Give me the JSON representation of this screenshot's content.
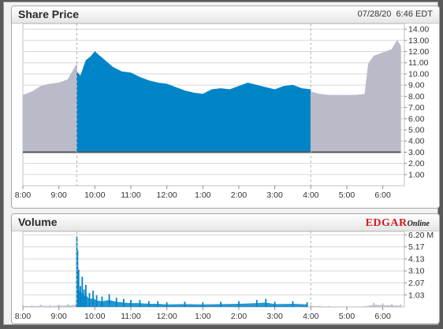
{
  "price_panel": {
    "title": "Share Price",
    "date": "07/28/20",
    "time": "6:46 EDT"
  },
  "volume_panel": {
    "title": "Volume"
  },
  "brand": {
    "main": "EDGAR",
    "sub": "Online"
  },
  "colors": {
    "session": "#0084c8",
    "extended": "#b9bcc8",
    "baseline": "#555555",
    "grid": "#d8d8d8",
    "divider": "#c0c0c0"
  },
  "chart_data": [
    {
      "type": "area",
      "title": "Share Price",
      "x_ticks": [
        "8:00",
        "9:00",
        "10:00",
        "11:00",
        "12:00",
        "1:00",
        "2:00",
        "3:00",
        "4:00",
        "5:00",
        "6:00"
      ],
      "y_ticks": [
        "1.00",
        "2.00",
        "3.00",
        "4.00",
        "5.00",
        "6.00",
        "7.00",
        "8.00",
        "9.00",
        "10.00",
        "11.00",
        "12.00",
        "13.00",
        "14.00"
      ],
      "ylim": [
        0,
        14.5
      ],
      "baseline": 3.0,
      "session_hours": [
        9.5,
        16.0
      ],
      "series": [
        {
          "segment": "pre-market",
          "x": [
            8.0,
            8.25,
            8.5,
            8.75,
            9.0,
            9.25,
            9.5
          ],
          "y": [
            8.1,
            8.4,
            8.9,
            9.1,
            9.2,
            9.5,
            10.9
          ]
        },
        {
          "segment": "regular",
          "x": [
            9.5,
            9.6,
            9.75,
            9.9,
            10.0,
            10.1,
            10.25,
            10.5,
            10.75,
            11.0,
            11.25,
            11.5,
            11.75,
            12.0,
            12.25,
            12.5,
            12.75,
            13.0,
            13.25,
            13.5,
            13.75,
            14.0,
            14.25,
            14.5,
            14.75,
            15.0,
            15.25,
            15.5,
            15.75,
            16.0
          ],
          "y": [
            10.2,
            9.8,
            11.2,
            11.6,
            12.0,
            11.7,
            11.3,
            10.6,
            10.2,
            10.1,
            9.7,
            9.4,
            9.2,
            9.1,
            8.8,
            8.5,
            8.3,
            8.2,
            8.6,
            8.7,
            8.6,
            8.9,
            9.2,
            9.0,
            8.8,
            8.6,
            8.9,
            9.0,
            8.7,
            8.6
          ]
        },
        {
          "segment": "after-hours",
          "x": [
            16.0,
            16.25,
            16.5,
            16.75,
            17.0,
            17.25,
            17.5,
            17.6,
            17.75,
            18.0,
            18.25,
            18.4,
            18.5
          ],
          "y": [
            8.4,
            8.2,
            8.1,
            8.1,
            8.1,
            8.1,
            8.2,
            10.9,
            11.6,
            11.9,
            12.2,
            13.0,
            12.5
          ]
        }
      ]
    },
    {
      "type": "bar",
      "title": "Volume",
      "x_ticks": [
        "8:00",
        "9:00",
        "10:00",
        "11:00",
        "12:00",
        "1:00",
        "2:00",
        "3:00",
        "4:00",
        "5:00",
        "6:00"
      ],
      "y_ticks": [
        "1.03",
        "2.07",
        "3.10",
        "4.13",
        "5.17",
        "6.20 M"
      ],
      "ylim": [
        0,
        6.5
      ],
      "unit": "M",
      "series": [
        {
          "segment": "pre-market",
          "x": [
            8.0,
            8.25,
            8.5,
            8.75,
            9.0,
            9.25,
            9.49
          ],
          "y": [
            0.15,
            0.12,
            0.18,
            0.14,
            0.2,
            0.25,
            0.35
          ]
        },
        {
          "segment": "regular",
          "x": [
            9.5,
            9.52,
            9.55,
            9.6,
            9.65,
            9.7,
            9.75,
            9.85,
            9.95,
            10.05,
            10.2,
            10.4,
            10.6,
            10.8,
            11.0,
            11.25,
            11.5,
            11.75,
            12.0,
            12.5,
            13.0,
            13.5,
            14.0,
            14.5,
            14.75,
            15.0,
            15.5,
            15.9
          ],
          "y": [
            6.1,
            4.9,
            3.2,
            1.8,
            2.6,
            1.5,
            1.9,
            1.2,
            1.4,
            1.0,
            0.9,
            1.1,
            0.8,
            0.7,
            0.6,
            0.6,
            0.5,
            0.5,
            0.4,
            0.45,
            0.4,
            0.45,
            0.5,
            0.6,
            0.7,
            0.45,
            0.5,
            0.4
          ]
        },
        {
          "segment": "after-hours",
          "x": [
            16.0,
            16.25,
            16.5,
            17.0,
            17.5,
            17.75,
            18.0,
            18.25,
            18.5
          ],
          "y": [
            0.15,
            0.1,
            0.08,
            0.06,
            0.08,
            0.35,
            0.3,
            0.25,
            0.2
          ]
        }
      ]
    }
  ]
}
